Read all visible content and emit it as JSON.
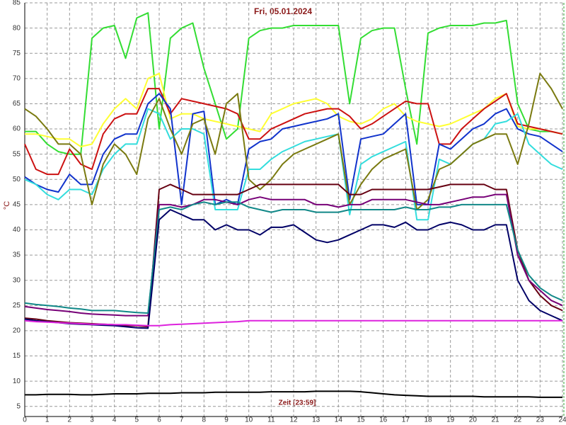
{
  "chart_data": {
    "type": "line",
    "title": "Fri, 05.01.2024",
    "x_label": "Zeit [23:59]",
    "y_label": "°C",
    "xlim": [
      0,
      24
    ],
    "ylim": [
      3,
      85
    ],
    "xticks": [
      0,
      1,
      2,
      3,
      4,
      5,
      6,
      7,
      8,
      9,
      10,
      11,
      12,
      13,
      14,
      15,
      16,
      17,
      18,
      19,
      20,
      21,
      22,
      23,
      24
    ],
    "yticks": [
      5,
      10,
      15,
      20,
      25,
      30,
      35,
      40,
      45,
      50,
      55,
      60,
      65,
      70,
      75,
      80,
      85
    ],
    "grid": true,
    "x": [
      0,
      0.5,
      1,
      1.5,
      2,
      2.5,
      3,
      3.5,
      4,
      4.5,
      5,
      5.5,
      6,
      6.5,
      7,
      7.5,
      8,
      8.5,
      9,
      9.5,
      10,
      10.5,
      11,
      11.5,
      12,
      12.5,
      13,
      13.5,
      14,
      14.5,
      15,
      15.5,
      16,
      16.5,
      17,
      17.5,
      18,
      18.5,
      19,
      19.5,
      20,
      20.5,
      21,
      21.5,
      22,
      22.5,
      23,
      23.5,
      24
    ],
    "series": [
      {
        "color": "#33dd33",
        "values": [
          59.5,
          59.5,
          57,
          55.5,
          55,
          55,
          78,
          80,
          80.5,
          74,
          82,
          83,
          60,
          78,
          80,
          81,
          72,
          65,
          58,
          60,
          78,
          79.5,
          80,
          80,
          80.5,
          80.5,
          80.5,
          80.5,
          80.5,
          65,
          78,
          79.5,
          80,
          80,
          68,
          57,
          79,
          80,
          80.5,
          80.5,
          80.5,
          81,
          81,
          81.5,
          65,
          60,
          59.5,
          59.5,
          59
        ]
      },
      {
        "color": "#ffff33",
        "values": [
          59,
          59,
          58.5,
          58,
          58,
          56.5,
          57,
          61,
          64,
          66,
          64,
          70,
          71,
          62,
          63,
          63,
          62,
          61.5,
          61,
          60.5,
          60,
          59.5,
          63,
          64,
          65,
          65.5,
          66,
          65,
          62.5,
          61.5,
          61,
          62,
          64,
          65,
          62.5,
          61.5,
          61,
          60.5,
          61,
          62,
          63,
          64,
          66,
          67,
          60.5,
          60,
          60,
          59.5,
          59
        ]
      },
      {
        "color": "#cc1111",
        "values": [
          57,
          52,
          51,
          51,
          56,
          53,
          52,
          59,
          62,
          63,
          63,
          68,
          68,
          63,
          66,
          65.5,
          65,
          64.5,
          64,
          63,
          58,
          58,
          60,
          61,
          62,
          63,
          63.5,
          64,
          64,
          62.5,
          60,
          61,
          62.5,
          64,
          65.5,
          65,
          65,
          57,
          57,
          60,
          62,
          64,
          65.5,
          67,
          61,
          60.5,
          60,
          59.5,
          59
        ]
      },
      {
        "color": "#1133cc",
        "values": [
          50.5,
          49,
          48,
          47.5,
          51,
          49,
          49,
          55,
          58,
          59,
          59,
          65,
          67,
          64,
          45,
          63,
          63.5,
          45,
          46,
          45,
          56,
          57.5,
          58,
          60,
          60.5,
          61,
          61.5,
          62,
          63,
          46,
          58,
          58.5,
          59,
          61,
          63,
          45,
          45,
          57,
          56,
          58,
          60,
          61,
          63,
          64,
          60,
          59,
          58.5,
          57,
          55.5
        ]
      },
      {
        "color": "#33dddd",
        "values": [
          50,
          49,
          47,
          46,
          48,
          48,
          47,
          52,
          55,
          57,
          57,
          64,
          63,
          58,
          60,
          60,
          59,
          44,
          44,
          44,
          52,
          52,
          54,
          55.5,
          56.5,
          57.5,
          58,
          58.5,
          59,
          43,
          53,
          54.5,
          55.5,
          56.5,
          57.5,
          42,
          42,
          54,
          53,
          55,
          57,
          58,
          61,
          61.5,
          63,
          57,
          55,
          53,
          52
        ]
      },
      {
        "color": "#7a7a10",
        "values": [
          64,
          62.5,
          60,
          57,
          57,
          55,
          45,
          53,
          57,
          55,
          51,
          62,
          66,
          60,
          55,
          61,
          62,
          55,
          65,
          67,
          50,
          48,
          50,
          53,
          55,
          56,
          57,
          58,
          59,
          45,
          49,
          52,
          54,
          55,
          56,
          44,
          46,
          52,
          53,
          55,
          57,
          58,
          59,
          59,
          53,
          61,
          71,
          68,
          64
        ]
      },
      {
        "color": "#660011",
        "values": [
          22.5,
          22.3,
          22,
          21.8,
          21.6,
          21.5,
          21.4,
          21.3,
          21.2,
          21,
          21,
          20.8,
          48,
          49,
          48,
          47,
          47,
          47,
          47,
          47,
          48,
          49,
          49,
          49,
          49,
          49,
          49,
          49,
          49,
          47,
          47,
          48,
          48,
          48,
          48,
          48,
          48,
          48.5,
          49,
          49,
          49,
          49,
          48,
          48,
          36,
          30,
          27,
          25,
          24
        ]
      },
      {
        "color": "#770077",
        "values": [
          24.8,
          24.5,
          24.2,
          24,
          23.8,
          23.5,
          23.3,
          23.2,
          23.1,
          23,
          23,
          23,
          45,
          45,
          44.5,
          45,
          46,
          46,
          45.5,
          45,
          46,
          46.5,
          46,
          46,
          46,
          46,
          45,
          45,
          44.5,
          45,
          45,
          46,
          46,
          46,
          46,
          45.5,
          45,
          45,
          45.5,
          46,
          46.5,
          46.5,
          47,
          47,
          35,
          30,
          28,
          26,
          25
        ]
      },
      {
        "color": "#118888",
        "values": [
          25.5,
          25.2,
          25,
          24.8,
          24.5,
          24.3,
          24,
          24,
          24,
          23.8,
          23.6,
          23.5,
          44,
          44.5,
          44,
          45,
          45.5,
          45,
          45.5,
          45.5,
          44.5,
          44,
          43.5,
          44,
          44,
          44,
          43.5,
          43.5,
          43.5,
          44,
          44,
          44,
          44,
          44,
          44.5,
          44,
          44,
          44.5,
          44.5,
          45,
          45,
          45,
          45,
          45,
          36,
          31,
          28.5,
          27,
          26
        ]
      },
      {
        "color": "#000066",
        "values": [
          22.3,
          22,
          21.8,
          21.6,
          21.4,
          21.3,
          21.2,
          21.1,
          21,
          20.8,
          20.6,
          20.5,
          42,
          44,
          43,
          42,
          42,
          40,
          41,
          40,
          40,
          39,
          40.5,
          40.5,
          41,
          39.5,
          38,
          37.5,
          38,
          39,
          40,
          41,
          41,
          40.5,
          41.5,
          40,
          40,
          41,
          41.5,
          41,
          40,
          40,
          41,
          41,
          30,
          26,
          24,
          23,
          22
        ]
      },
      {
        "color": "#dd22dd",
        "values": [
          22,
          21.8,
          21.7,
          21.6,
          21.5,
          21.4,
          21.3,
          21.3,
          21.2,
          21.2,
          21.1,
          21,
          21,
          21.2,
          21.3,
          21.4,
          21.5,
          21.6,
          21.7,
          21.8,
          22,
          22,
          22,
          22,
          22,
          22,
          22,
          22,
          22,
          22,
          22,
          22,
          22,
          22,
          22,
          22,
          22,
          22,
          22,
          22,
          22,
          22,
          22,
          22,
          22,
          22,
          22,
          22,
          22
        ]
      },
      {
        "color": "#000000",
        "values": [
          7.3,
          7.3,
          7.4,
          7.4,
          7.4,
          7.3,
          7.3,
          7.4,
          7.5,
          7.5,
          7.5,
          7.6,
          7.6,
          7.6,
          7.7,
          7.7,
          7.7,
          7.8,
          7.8,
          7.8,
          7.8,
          7.8,
          7.9,
          7.9,
          7.9,
          7.9,
          8,
          8,
          8,
          8,
          7.9,
          7.7,
          7.5,
          7.3,
          7.2,
          7.1,
          7,
          7,
          7,
          7,
          7,
          6.9,
          6.9,
          6.9,
          6.9,
          6.9,
          6.8,
          6.8,
          6.8
        ]
      }
    ]
  }
}
